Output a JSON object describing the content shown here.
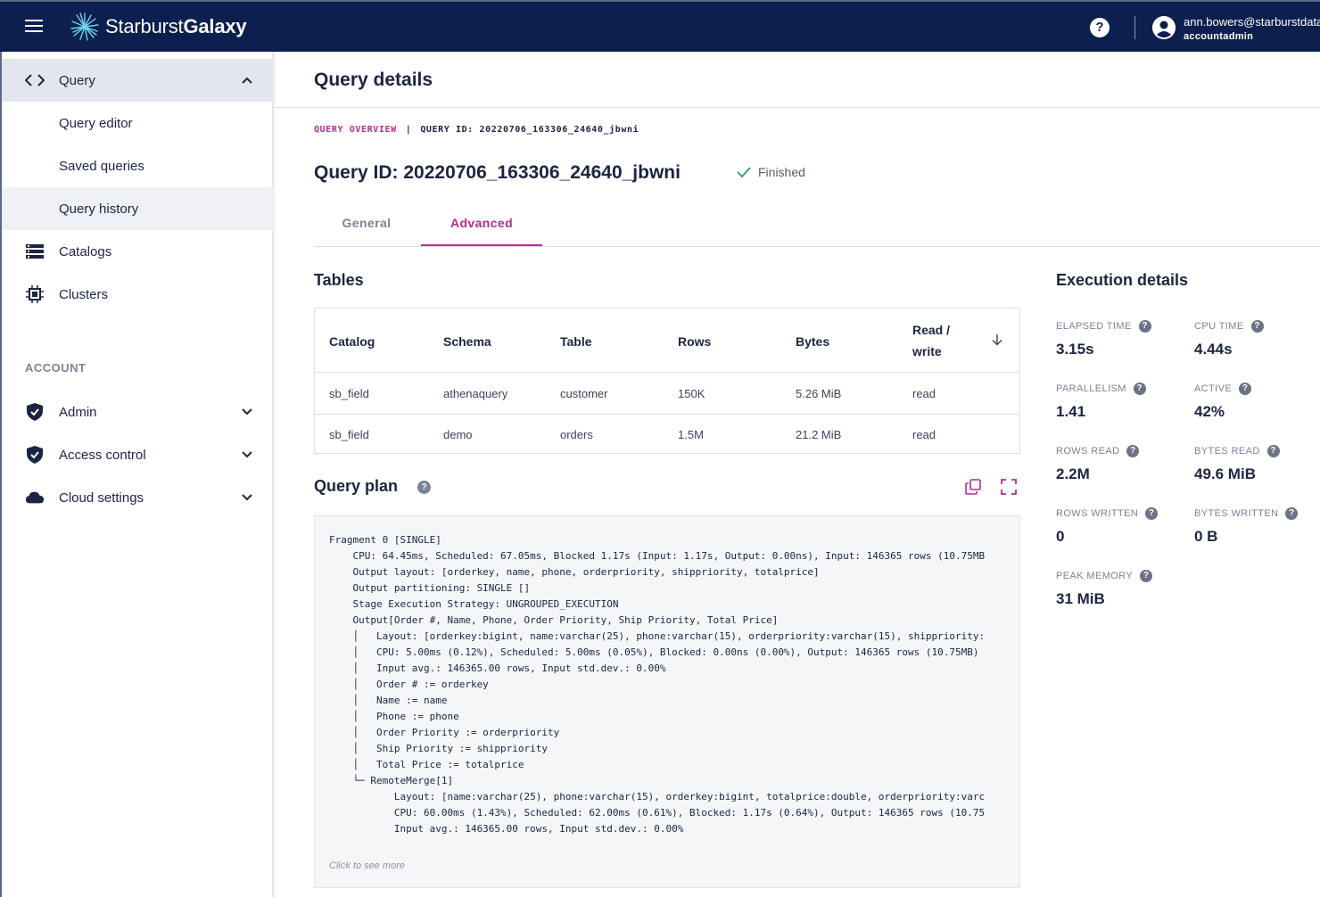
{
  "header": {
    "brand_light": "Starburst",
    "brand_bold": "Galaxy",
    "user_email": "ann.bowers@starburstdata.com",
    "user_role": "accountadmin"
  },
  "sidebar": {
    "query": "Query",
    "query_editor": "Query editor",
    "saved_queries": "Saved queries",
    "query_history": "Query history",
    "catalogs": "Catalogs",
    "clusters": "Clusters",
    "account_label": "ACCOUNT",
    "admin": "Admin",
    "access_control": "Access control",
    "cloud_settings": "Cloud settings"
  },
  "page": {
    "title": "Query details",
    "breadcrumb_link": "QUERY OVERVIEW",
    "breadcrumb_sep": "|",
    "breadcrumb_current": "QUERY ID: 20220706_163306_24640_jbwni",
    "query_id_heading": "Query ID: 20220706_163306_24640_jbwni",
    "status": "Finished",
    "tab_general": "General",
    "tab_advanced": "Advanced"
  },
  "tables": {
    "heading": "Tables",
    "columns": [
      "Catalog",
      "Schema",
      "Table",
      "Rows",
      "Bytes",
      "Read /",
      "write"
    ],
    "rows": [
      [
        "sb_field",
        "athenaquery",
        "customer",
        "150K",
        "5.26 MiB",
        "read"
      ],
      [
        "sb_field",
        "demo",
        "orders",
        "1.5M",
        "21.2 MiB",
        "read"
      ]
    ]
  },
  "plan": {
    "heading": "Query plan",
    "text": "Fragment 0 [SINGLE]\n    CPU: 64.45ms, Scheduled: 67.05ms, Blocked 1.17s (Input: 1.17s, Output: 0.00ns), Input: 146365 rows (10.75MB\n    Output layout: [orderkey, name, phone, orderpriority, shippriority, totalprice]\n    Output partitioning: SINGLE []\n    Stage Execution Strategy: UNGROUPED_EXECUTION\n    Output[Order #, Name, Phone, Order Priority, Ship Priority, Total Price]\n    │   Layout: [orderkey:bigint, name:varchar(25), phone:varchar(15), orderpriority:varchar(15), shippriority:\n    │   CPU: 5.00ms (0.12%), Scheduled: 5.00ms (0.05%), Blocked: 0.00ns (0.00%), Output: 146365 rows (10.75MB)\n    │   Input avg.: 146365.00 rows, Input std.dev.: 0.00%\n    │   Order # := orderkey\n    │   Name := name\n    │   Phone := phone\n    │   Order Priority := orderpriority\n    │   Ship Priority := shippriority\n    │   Total Price := totalprice\n    └─ RemoteMerge[1]\n           Layout: [name:varchar(25), phone:varchar(15), orderkey:bigint, totalprice:double, orderpriority:varc\n           CPU: 60.00ms (1.43%), Scheduled: 62.00ms (0.61%), Blocked: 1.17s (0.64%), Output: 146365 rows (10.75\n           Input avg.: 146365.00 rows, Input std.dev.: 0.00%",
    "see_more": "Click to see more"
  },
  "execution": {
    "heading": "Execution details",
    "metrics": [
      {
        "label": "ELAPSED TIME",
        "value": "3.15s"
      },
      {
        "label": "CPU TIME",
        "value": "4.44s"
      },
      {
        "label": "PARALLELISM",
        "value": "1.41"
      },
      {
        "label": "ACTIVE",
        "value": "42%"
      },
      {
        "label": "ROWS READ",
        "value": "2.2M"
      },
      {
        "label": "BYTES READ",
        "value": "49.6 MiB"
      },
      {
        "label": "ROWS WRITTEN",
        "value": "0"
      },
      {
        "label": "BYTES WRITTEN",
        "value": "0 B"
      },
      {
        "label": "PEAK MEMORY",
        "value": "31 MiB"
      }
    ]
  },
  "colors": {
    "topbar": "#0d1f4e",
    "accent": "#b72c8e",
    "status_green": "#2e9d5b"
  },
  "icons": {
    "menu": "hamburger-icon",
    "help": "help-icon",
    "user": "account-circle-icon",
    "query": "code-icon",
    "catalogs": "list-icon",
    "clusters": "chip-icon",
    "admin": "shield-icon",
    "access": "shield-icon",
    "cloud": "cloud-icon",
    "copy": "copy-icon",
    "expand": "fullscreen-icon",
    "sort": "arrow-down-icon",
    "status": "check-icon"
  }
}
